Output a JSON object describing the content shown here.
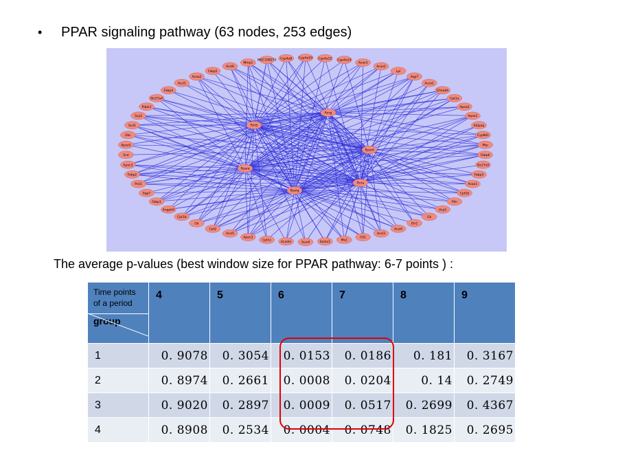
{
  "title": {
    "bullet": "•",
    "text": "PPAR signaling pathway  (63 nodes, 253 edges)"
  },
  "network": {
    "hubs": [
      "Rxrb",
      "Rxrg",
      "Ppara",
      "Ppard",
      "Rxra",
      "Pparg"
    ],
    "perimeter": [
      "Cyp4a10",
      "Cyp4a12",
      "Cyp4a14",
      "Acox3",
      "Acox2",
      "Lpl",
      "Aqp7",
      "Acox1",
      "Ehhadh",
      "Cpt1a",
      "Apoa2",
      "Apoa1",
      "Adipoq",
      "Cyp8b1",
      "Pltp",
      "Fabp6",
      "Slc27a5",
      "Fabp3",
      "Acaa1",
      "Cpt1b",
      "Plin",
      "Ucp1",
      "Gk",
      "Olr1",
      "Acsl4",
      "Acsl3",
      "Ctl1",
      "Me1",
      "Sorbs1",
      "Acadl",
      "Acadm",
      "Cpt1c",
      "Apoc3",
      "Acsl5",
      "Cpt2",
      "Gk",
      "Cpt1b",
      "Angptl4",
      "Fabp1",
      "Aqp7",
      "Pck1",
      "Fabp2",
      "Apoc3",
      "Scd",
      "Apoa5",
      "Ubc",
      "Scd1",
      "Scp2",
      "Pdpk1",
      "Slc27a4",
      "Fabp4",
      "Acsl1",
      "Acaa2",
      "Fabp5",
      "Acsl6",
      "Mmp1",
      "MGC108273",
      "Cyp4a8"
    ]
  },
  "caption": "The average p-values (best window size for PPAR pathway: 6-7 points ) :",
  "table": {
    "corner_top": "Time points of a period",
    "corner_bottom": "group",
    "columns": [
      "4",
      "5",
      "6",
      "7",
      "8",
      "9"
    ],
    "rows": [
      {
        "group": "1",
        "values": [
          "0. 9078",
          "0. 3054",
          "0. 0153",
          "0. 0186",
          "0. 181",
          "0. 3167"
        ]
      },
      {
        "group": "2",
        "values": [
          "0. 8974",
          "0. 2661",
          "0. 0008",
          "0. 0204",
          "0. 14",
          "0. 2749"
        ]
      },
      {
        "group": "3",
        "values": [
          "0. 9020",
          "0. 2897",
          "0. 0009",
          "0. 0517",
          "0. 2699",
          "0. 4367"
        ]
      },
      {
        "group": "4",
        "values": [
          "0. 8908",
          "0. 2534",
          "0. 0004",
          "0. 0748",
          "0. 1825",
          "0. 2695"
        ]
      }
    ],
    "highlight_color": "#e00000",
    "header_color": "#4f81bd"
  }
}
